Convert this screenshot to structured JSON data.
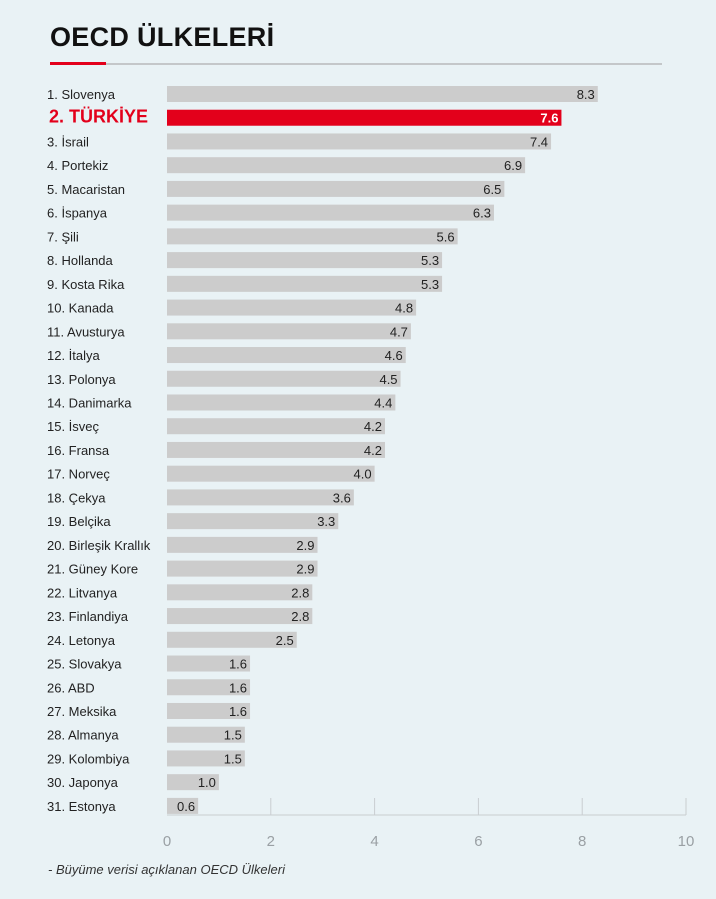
{
  "header": {
    "title": "OECD ÜLKELERİ"
  },
  "footnote": "-  Büyüme verisi açıklanan OECD Ülkeleri",
  "colors": {
    "bar": "#cccccc",
    "highlight": "#e3001b",
    "background": "#e9f2f5"
  },
  "chart_data": {
    "type": "bar",
    "orientation": "horizontal",
    "title": "OECD ÜLKELERİ",
    "xlabel": "",
    "ylabel": "",
    "xlim": [
      0,
      10
    ],
    "x_ticks": [
      "0",
      "2",
      "4",
      "6",
      "8",
      "10"
    ],
    "grid": true,
    "highlight_index": 1,
    "categories": [
      "1. Slovenya",
      "2. TÜRKİYE",
      "3. İsrail",
      "4. Portekiz",
      "5. Macaristan",
      "6. İspanya",
      "7. Şili",
      "8. Hollanda",
      "9. Kosta Rika",
      "10. Kanada",
      "11. Avusturya",
      "12. İtalya",
      "13. Polonya",
      "14. Danimarka",
      "15. İsveç",
      "16. Fransa",
      "17. Norveç",
      "18. Çekya",
      "19. Belçika",
      "20. Birleşik Krallık",
      "21. Güney Kore",
      "22. Litvanya",
      "23. Finlandiya",
      "24. Letonya",
      "25. Slovakya",
      "26. ABD",
      "27. Meksika",
      "28. Almanya",
      "29. Kolombiya",
      "30. Japonya",
      "31. Estonya"
    ],
    "values": [
      8.3,
      7.6,
      7.4,
      6.9,
      6.5,
      6.3,
      5.6,
      5.3,
      5.3,
      4.8,
      4.7,
      4.6,
      4.5,
      4.4,
      4.2,
      4.2,
      4.0,
      3.6,
      3.3,
      2.9,
      2.9,
      2.8,
      2.8,
      2.5,
      1.6,
      1.6,
      1.6,
      1.5,
      1.5,
      1.0,
      0.6
    ],
    "value_labels": [
      "8.3",
      "7.6",
      "7.4",
      "6.9",
      "6.5",
      "6.3",
      "5.6",
      "5.3",
      "5.3",
      "4.8",
      "4.7",
      "4.6",
      "4.5",
      "4.4",
      "4.2",
      "4.2",
      "4.0",
      "3.6",
      "3.3",
      "2.9",
      "2.9",
      "2.8",
      "2.8",
      "2.5",
      "1.6",
      "1.6",
      "1.6",
      "1.5",
      "1.5",
      "1.0",
      "0.6"
    ]
  }
}
